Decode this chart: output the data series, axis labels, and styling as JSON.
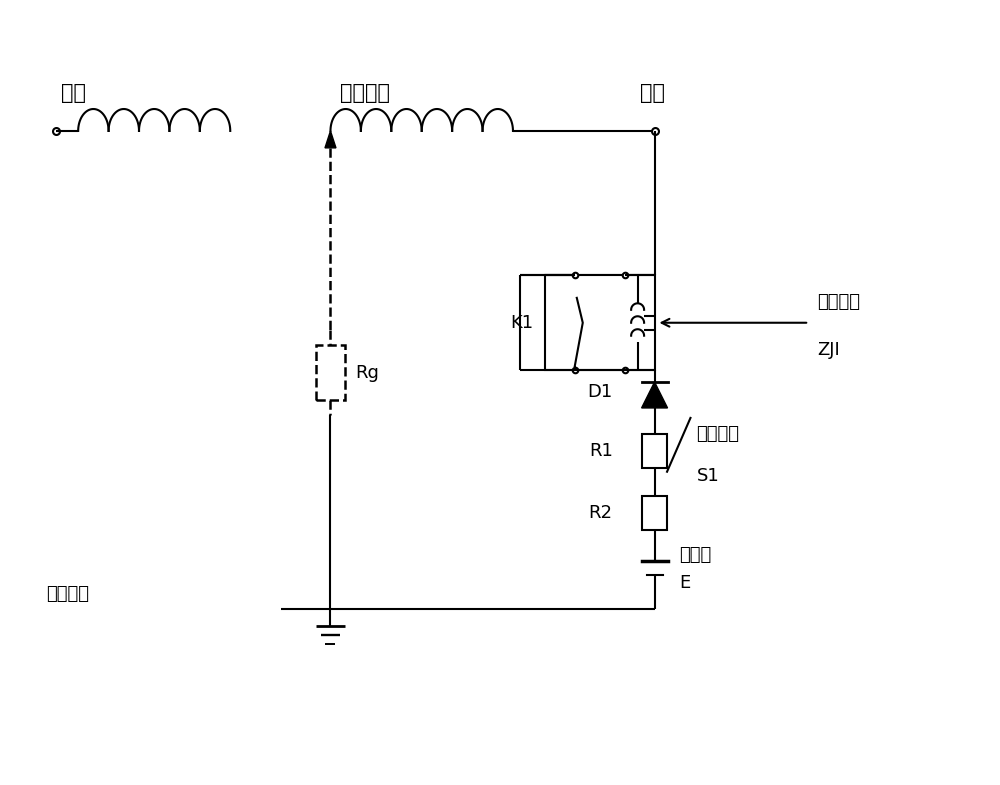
{
  "bg_color": "#ffffff",
  "line_color": "#000000",
  "font_size_label": 13,
  "labels": {
    "zheng_ji": "正极",
    "zhuan_zi_rao_zu": "转子绕组",
    "fu_ji": "负极",
    "K1": "K1",
    "D1": "D1",
    "R1": "R1",
    "R2": "R2",
    "Rg": "Rg",
    "E": "E",
    "zi_jian": "自检控制",
    "ZJI": "ZJI",
    "dian_zi": "电子开关",
    "S1": "S1",
    "zhuan_zi_da_zhou": "转子大轴",
    "zhu_ru_yuan": "注入源"
  },
  "xlim": [
    0,
    10
  ],
  "ylim": [
    0,
    7.85
  ],
  "figw": 10.0,
  "figh": 7.85,
  "dpi": 100
}
